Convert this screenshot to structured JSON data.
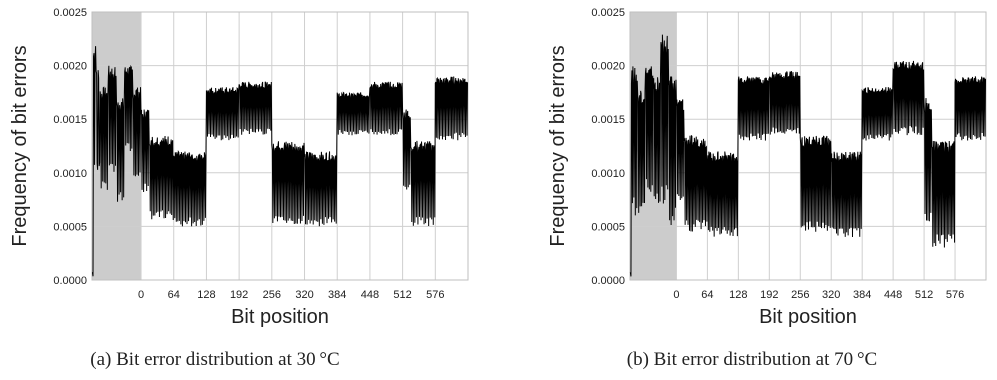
{
  "chart_data": [
    {
      "type": "line",
      "caption": "(a) Bit error distribution at 30 °C",
      "xlabel": "Bit position",
      "ylabel": "Frequency of bit errors",
      "xlim": [
        -96,
        640
      ],
      "ylim": [
        0,
        0.0025
      ],
      "xticks": [
        0,
        64,
        128,
        192,
        256,
        320,
        384,
        448,
        512,
        576
      ],
      "yticks": [
        "0.0000",
        "0.0005",
        "0.0010",
        "0.0015",
        "0.0020",
        "0.0025"
      ],
      "shaded_range": [
        -96,
        0
      ],
      "grid": true,
      "segments": [
        {
          "x": [
            -96,
            -93
          ],
          "mid": 5e-05,
          "amp": 2e-05,
          "period": 3
        },
        {
          "x": [
            -93,
            -88
          ],
          "mid": 0.0016,
          "amp": 0.0006,
          "period": 3
        },
        {
          "x": [
            -88,
            -80
          ],
          "mid": 0.0015,
          "amp": 0.0005,
          "period": 4
        },
        {
          "x": [
            -80,
            -64
          ],
          "mid": 0.0013,
          "amp": 0.0005,
          "period": 3
        },
        {
          "x": [
            -64,
            -48
          ],
          "mid": 0.0015,
          "amp": 0.0005,
          "period": 3
        },
        {
          "x": [
            -48,
            -32
          ],
          "mid": 0.0012,
          "amp": 0.0005,
          "period": 3
        },
        {
          "x": [
            -32,
            -16
          ],
          "mid": 0.0016,
          "amp": 0.0004,
          "period": 3
        },
        {
          "x": [
            -16,
            0
          ],
          "mid": 0.00135,
          "amp": 0.00045,
          "period": 3
        },
        {
          "x": [
            0,
            16
          ],
          "mid": 0.0012,
          "amp": 0.0004,
          "period": 3
        },
        {
          "x": [
            16,
            64
          ],
          "mid": 0.00095,
          "amp": 0.0004,
          "period": 3
        },
        {
          "x": [
            64,
            128
          ],
          "mid": 0.00085,
          "amp": 0.00035,
          "period": 3
        },
        {
          "x": [
            128,
            192
          ],
          "mid": 0.00155,
          "amp": 0.00025,
          "period": 3
        },
        {
          "x": [
            192,
            256
          ],
          "mid": 0.0016,
          "amp": 0.00025,
          "period": 3
        },
        {
          "x": [
            256,
            320
          ],
          "mid": 0.0009,
          "amp": 0.0004,
          "period": 3
        },
        {
          "x": [
            320,
            384
          ],
          "mid": 0.00085,
          "amp": 0.00035,
          "period": 3
        },
        {
          "x": [
            384,
            448
          ],
          "mid": 0.00155,
          "amp": 0.0002,
          "period": 3
        },
        {
          "x": [
            448,
            512
          ],
          "mid": 0.0016,
          "amp": 0.00025,
          "period": 3
        },
        {
          "x": [
            512,
            528
          ],
          "mid": 0.0012,
          "amp": 0.0004,
          "period": 3
        },
        {
          "x": [
            528,
            576
          ],
          "mid": 0.0009,
          "amp": 0.0004,
          "period": 3
        },
        {
          "x": [
            576,
            640
          ],
          "mid": 0.0016,
          "amp": 0.0003,
          "period": 3
        }
      ]
    },
    {
      "type": "line",
      "caption": "(b) Bit error distribution at 70 °C",
      "xlabel": "Bit position",
      "ylabel": "Frequency of bit errors",
      "xlim": [
        -96,
        640
      ],
      "ylim": [
        0,
        0.0025
      ],
      "xticks": [
        0,
        64,
        128,
        192,
        256,
        320,
        384,
        448,
        512,
        576
      ],
      "yticks": [
        "0.0000",
        "0.0005",
        "0.0010",
        "0.0015",
        "0.0020",
        "0.0025"
      ],
      "shaded_range": [
        -96,
        0
      ],
      "grid": true,
      "segments": [
        {
          "x": [
            -96,
            -93
          ],
          "mid": 5e-05,
          "amp": 2e-05,
          "period": 3
        },
        {
          "x": [
            -93,
            -80
          ],
          "mid": 0.0013,
          "amp": 0.0007,
          "period": 3
        },
        {
          "x": [
            -80,
            -64
          ],
          "mid": 0.0012,
          "amp": 0.0006,
          "period": 3
        },
        {
          "x": [
            -64,
            -48
          ],
          "mid": 0.0014,
          "amp": 0.0006,
          "period": 3
        },
        {
          "x": [
            -48,
            -32
          ],
          "mid": 0.0013,
          "amp": 0.0006,
          "period": 3
        },
        {
          "x": [
            -32,
            -16
          ],
          "mid": 0.0015,
          "amp": 0.0008,
          "period": 3
        },
        {
          "x": [
            -16,
            0
          ],
          "mid": 0.0012,
          "amp": 0.0007,
          "period": 3
        },
        {
          "x": [
            0,
            16
          ],
          "mid": 0.0012,
          "amp": 0.0005,
          "period": 3
        },
        {
          "x": [
            16,
            64
          ],
          "mid": 0.0009,
          "amp": 0.00045,
          "period": 3
        },
        {
          "x": [
            64,
            128
          ],
          "mid": 0.0008,
          "amp": 0.0004,
          "period": 3
        },
        {
          "x": [
            128,
            192
          ],
          "mid": 0.0016,
          "amp": 0.0003,
          "period": 3
        },
        {
          "x": [
            192,
            256
          ],
          "mid": 0.00165,
          "amp": 0.0003,
          "period": 3
        },
        {
          "x": [
            256,
            320
          ],
          "mid": 0.0009,
          "amp": 0.00045,
          "period": 3
        },
        {
          "x": [
            320,
            384
          ],
          "mid": 0.0008,
          "amp": 0.0004,
          "period": 3
        },
        {
          "x": [
            384,
            448
          ],
          "mid": 0.00155,
          "amp": 0.00025,
          "period": 3
        },
        {
          "x": [
            448,
            512
          ],
          "mid": 0.0017,
          "amp": 0.00035,
          "period": 3
        },
        {
          "x": [
            512,
            528
          ],
          "mid": 0.0011,
          "amp": 0.0006,
          "period": 3
        },
        {
          "x": [
            528,
            576
          ],
          "mid": 0.0008,
          "amp": 0.0005,
          "period": 3
        },
        {
          "x": [
            576,
            640
          ],
          "mid": 0.0016,
          "amp": 0.0003,
          "period": 3
        }
      ]
    }
  ]
}
